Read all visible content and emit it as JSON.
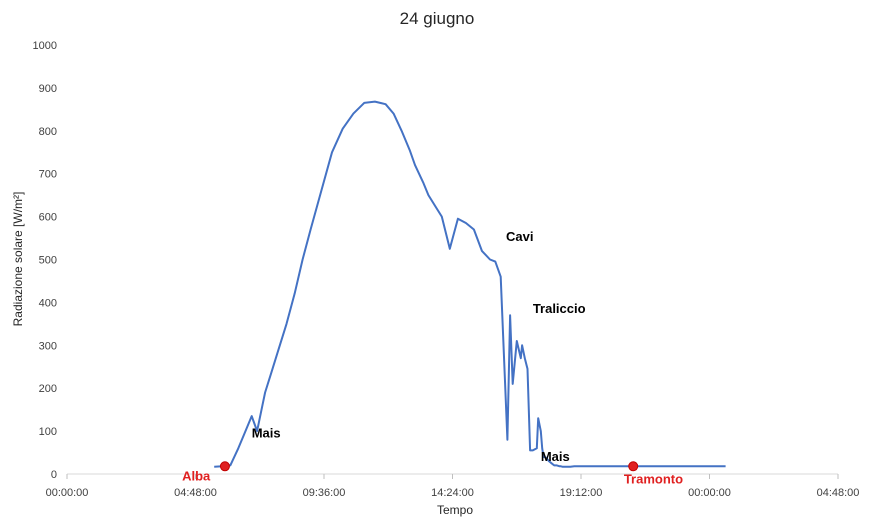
{
  "chart_data": {
    "type": "line",
    "title": "24 giugno",
    "xlabel": "Tempo",
    "ylabel": "Radiazione solare [W/m²]",
    "ylim": [
      0,
      1000
    ],
    "yticks": [
      "0",
      "100",
      "200",
      "300",
      "400",
      "500",
      "600",
      "700",
      "800",
      "900",
      "1000"
    ],
    "xticks": [
      "00:00:00",
      "04:48:00",
      "09:36:00",
      "14:24:00",
      "19:12:00",
      "00:00:00",
      "04:48:00"
    ],
    "xlim_hours": [
      0,
      28.8
    ],
    "series_color": "#4472c4",
    "marker_color": "#e02020",
    "x_hours": [
      5.5,
      5.8,
      5.9,
      6.1,
      6.4,
      6.6,
      6.9,
      7.1,
      7.3,
      7.4,
      7.6,
      7.9,
      8.2,
      8.5,
      8.8,
      9.1,
      9.5,
      9.9,
      10.3,
      10.7,
      11.1,
      11.5,
      11.9,
      12.2,
      12.5,
      12.8,
      13.0,
      13.3,
      13.5,
      13.8,
      14.0,
      14.3,
      14.6,
      14.9,
      15.2,
      15.5,
      15.8,
      16.0,
      16.2,
      16.45,
      16.55,
      16.65,
      16.8,
      16.95,
      17.0,
      17.1,
      17.2,
      17.3,
      17.4,
      17.55,
      17.6,
      17.7,
      17.75,
      17.8,
      17.9,
      18.0,
      18.1,
      18.2,
      18.3,
      18.4,
      18.45,
      18.5,
      18.6,
      18.7,
      18.8,
      18.95,
      19.0,
      19.1,
      19.2,
      19.3,
      19.4,
      19.5,
      19.7,
      19.9,
      20.2,
      20.5,
      20.8,
      21.1,
      21.4,
      21.8,
      22.2,
      22.6,
      23.0,
      23.4,
      23.8,
      24.2,
      24.6
    ],
    "y_values": [
      17,
      18,
      20,
      20,
      60,
      90,
      135,
      100,
      160,
      190,
      230,
      290,
      350,
      420,
      500,
      570,
      660,
      750,
      805,
      840,
      865,
      868,
      862,
      840,
      800,
      755,
      720,
      680,
      650,
      620,
      600,
      525,
      595,
      585,
      570,
      520,
      500,
      495,
      460,
      80,
      370,
      210,
      310,
      270,
      300,
      270,
      245,
      55,
      55,
      60,
      130,
      100,
      60,
      40,
      38,
      30,
      25,
      20,
      20,
      18,
      18,
      17,
      17,
      17,
      17,
      18,
      18,
      18,
      18,
      18,
      18,
      18,
      18,
      18,
      18,
      18,
      18,
      18,
      18,
      18,
      18,
      18,
      18,
      18,
      18,
      18,
      18
    ],
    "markers": [
      {
        "name": "Alba",
        "x_hours": 5.9,
        "y": 18
      },
      {
        "name": "Tramonto",
        "x_hours": 21.15,
        "y": 18
      }
    ],
    "annotations": [
      {
        "text": "Mais",
        "x_hours": 6.9,
        "y": 85,
        "color": "#000000"
      },
      {
        "text": "Cavi",
        "x_hours": 16.4,
        "y": 543,
        "color": "#000000"
      },
      {
        "text": "Traliccio",
        "x_hours": 17.4,
        "y": 375,
        "color": "#000000"
      },
      {
        "text": "Mais",
        "x_hours": 17.7,
        "y": 30,
        "color": "#000000"
      },
      {
        "text": "Alba",
        "x_hours": 4.3,
        "y": -15,
        "color": "#e02020"
      },
      {
        "text": "Tramonto",
        "x_hours": 20.8,
        "y": -22,
        "color": "#e02020"
      }
    ]
  }
}
